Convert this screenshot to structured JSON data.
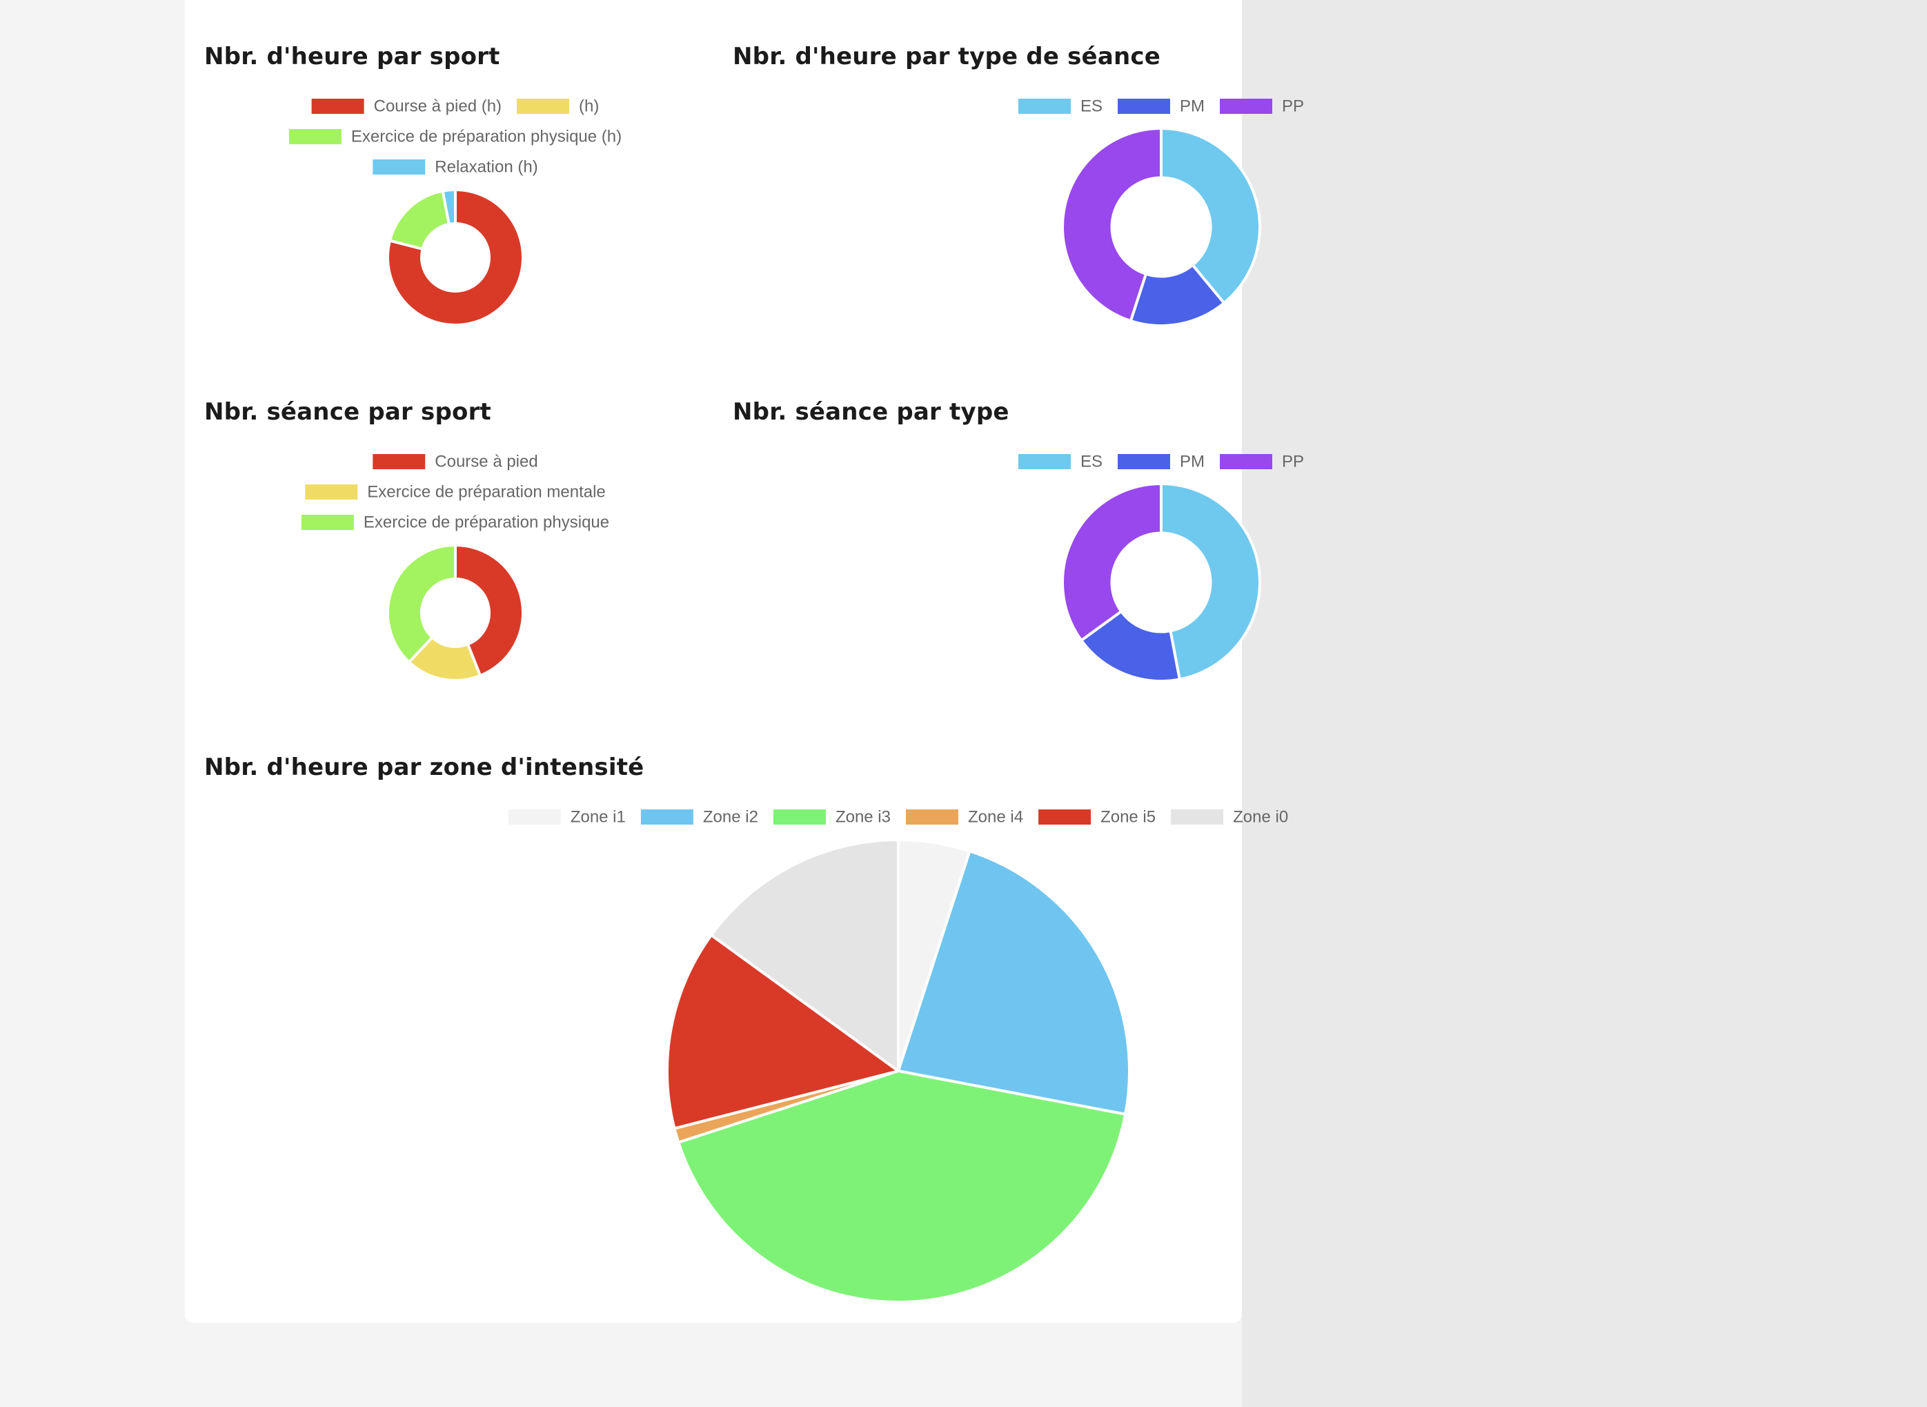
{
  "chart_data": [
    {
      "id": "heures-sport",
      "type": "doughnut",
      "title": "Nbr. d'heure par sport",
      "categories": [
        "Course à pied (h)",
        "(h)",
        "Exercice de préparation physique (h)",
        "Relaxation (h)"
      ],
      "values": [
        79,
        0,
        18,
        3
      ],
      "colors": [
        "#d93a28",
        "#f0dc64",
        "#a3f25f",
        "#6fc9ef"
      ],
      "legend": "top"
    },
    {
      "id": "heures-type",
      "type": "doughnut",
      "title": "Nbr. d'heure par type de séance",
      "categories": [
        "ES",
        "PM",
        "PP"
      ],
      "values": [
        39,
        16,
        45
      ],
      "colors": [
        "#6fc9ef",
        "#4a62e8",
        "#9848ec"
      ],
      "legend": "top"
    },
    {
      "id": "seances-sport",
      "type": "doughnut",
      "title": "Nbr. séance par sport",
      "categories": [
        "Course à pied",
        "Exercice de préparation mentale",
        "Exercice de préparation physique"
      ],
      "values": [
        44,
        18,
        38
      ],
      "colors": [
        "#d93a28",
        "#f0dc64",
        "#a3f25f"
      ],
      "legend": "top"
    },
    {
      "id": "seances-type",
      "type": "doughnut",
      "title": "Nbr. séance par type",
      "categories": [
        "ES",
        "PM",
        "PP"
      ],
      "values": [
        47,
        18,
        35
      ],
      "colors": [
        "#6fc9ef",
        "#4a62e8",
        "#9848ec"
      ],
      "legend": "top"
    },
    {
      "id": "heures-zone",
      "type": "pie",
      "title": "Nbr. d'heure par zone d'intensité",
      "categories": [
        "Zone i1",
        "Zone i2",
        "Zone i3",
        "Zone i4",
        "Zone i5",
        "Zone i0"
      ],
      "values": [
        5,
        23,
        42,
        1,
        14,
        15
      ],
      "colors": [
        "#f3f3f3",
        "#6fc5ef",
        "#7ef276",
        "#eba55a",
        "#d93a28",
        "#e4e4e4"
      ],
      "legend": "top"
    }
  ]
}
